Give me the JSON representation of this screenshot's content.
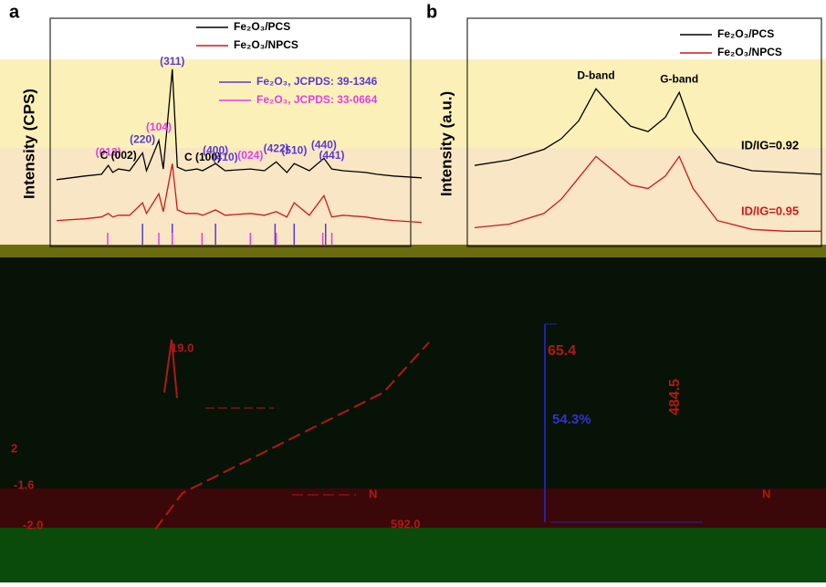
{
  "chart_data": [
    {
      "type": "line",
      "panel_label": "a",
      "ylabel": "Intensity (CPS)",
      "xlim": [
        15,
        80
      ],
      "ylim": [
        0,
        100
      ],
      "x": [
        15,
        20,
        23,
        24.2,
        25,
        26,
        28,
        30.3,
        31,
        33.2,
        34,
        35.6,
        36.5,
        38,
        40,
        41,
        43.3,
        45,
        49.5,
        52,
        54.1,
        56,
        57.3,
        60,
        62.6,
        64,
        66,
        70,
        72,
        75,
        80
      ],
      "series": [
        {
          "name": "Fe₂O₃/PCS",
          "color": "#000000",
          "values": [
            35,
            37,
            38,
            43,
            39,
            41,
            40,
            50,
            40,
            57,
            41,
            97,
            42,
            40,
            41,
            40,
            44,
            40,
            41,
            40,
            45,
            39,
            44,
            40,
            47,
            41,
            40,
            39,
            38,
            37,
            36
          ]
        },
        {
          "name": "Fe₂O₃/NPCS",
          "color": "#cc1a1a",
          "values": [
            12,
            13,
            14,
            16,
            14,
            15,
            15,
            22,
            16,
            27,
            17,
            44,
            18,
            16,
            16,
            15,
            18,
            15,
            16,
            15,
            17,
            14,
            22,
            15,
            26,
            14,
            15,
            14,
            13,
            12,
            11
          ]
        }
      ],
      "references": [
        {
          "name": "Fe₂O₃, JCPDS: 39-1346",
          "color": "#5a3ad0",
          "positions": [
            30.3,
            35.6,
            43.3,
            53.9,
            57.3,
            62.9
          ]
        },
        {
          "name": "Fe₂O₃, JCPDS: 33-0664",
          "color": "#e040e0",
          "positions": [
            24.1,
            33.2,
            35.6,
            40.9,
            49.5,
            54.1,
            62.4,
            64.0
          ]
        }
      ],
      "annotations": [
        {
          "text": "(012)",
          "x": 24.2,
          "color": "#e040e0"
        },
        {
          "text": "C (002)",
          "x": 26,
          "color": "#000000"
        },
        {
          "text": "(220)",
          "x": 30.3,
          "color": "#5a3ad0"
        },
        {
          "text": "(104)",
          "x": 33.2,
          "color": "#e040e0"
        },
        {
          "text": "(311)",
          "x": 35.6,
          "color": "#5a3ad0"
        },
        {
          "text": "C (100)",
          "x": 41,
          "color": "#000000"
        },
        {
          "text": "(400)",
          "x": 43.3,
          "color": "#5a3ad0"
        },
        {
          "text": "(410)",
          "x": 45,
          "color": "#5a3ad0"
        },
        {
          "text": "(024)",
          "x": 49.5,
          "color": "#e040e0"
        },
        {
          "text": "(422)",
          "x": 54.1,
          "color": "#5a3ad0"
        },
        {
          "text": "(510)",
          "x": 57.3,
          "color": "#5a3ad0"
        },
        {
          "text": "(440)",
          "x": 62.6,
          "color": "#5a3ad0"
        },
        {
          "text": "(441)",
          "x": 64,
          "color": "#5a3ad0"
        }
      ]
    },
    {
      "type": "line",
      "panel_label": "b",
      "ylabel": "Intensity (a.u.)",
      "xlim": [
        1000,
        2000
      ],
      "ylim": [
        0,
        100
      ],
      "x": [
        1000,
        1100,
        1200,
        1250,
        1300,
        1350,
        1400,
        1450,
        1500,
        1550,
        1590,
        1630,
        1700,
        1800,
        1900,
        2000
      ],
      "series": [
        {
          "name": "Fe₂O₃/PCS",
          "color": "#000000",
          "values": [
            43,
            46,
            52,
            58,
            68,
            86,
            75,
            65,
            62,
            70,
            84,
            62,
            45,
            40,
            39,
            38
          ]
        },
        {
          "name": "Fe₂O₃/NPCS",
          "color": "#cc1a1a",
          "values": [
            8,
            10,
            16,
            24,
            36,
            48,
            40,
            32,
            30,
            37,
            48,
            30,
            12,
            7,
            6,
            6
          ]
        }
      ],
      "annotations": [
        {
          "text": "D-band",
          "x": 1350,
          "color": "#000000"
        },
        {
          "text": "G-band",
          "x": 1590,
          "color": "#000000"
        }
      ],
      "ratios": [
        "ID/IG=0.92",
        "ID/IG=0.95"
      ]
    }
  ],
  "lower_panel": {
    "labels": [
      "19.0",
      "65.4",
      "54.3%",
      "484.5",
      "592.0",
      "-2.0",
      "-1.6",
      "2",
      "N",
      "N"
    ]
  }
}
